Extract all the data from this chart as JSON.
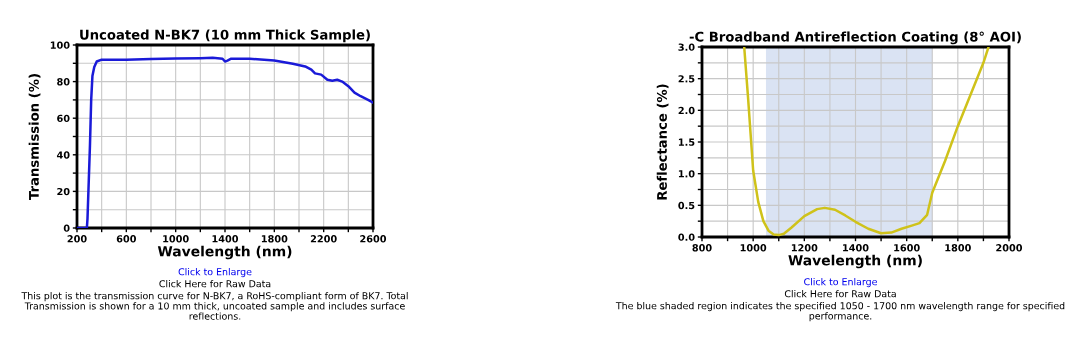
{
  "chart_data": [
    {
      "type": "line",
      "title": "Uncoated N-BK7 (10 mm Thick Sample)",
      "xlabel": "Wavelength (nm)",
      "ylabel": "Transmission (%)",
      "x": [
        200,
        280,
        285,
        295,
        305,
        315,
        325,
        340,
        360,
        400,
        600,
        800,
        1000,
        1200,
        1300,
        1380,
        1400,
        1420,
        1450,
        1600,
        1800,
        1950,
        2050,
        2100,
        2130,
        2180,
        2230,
        2270,
        2310,
        2350,
        2400,
        2450,
        2500,
        2560,
        2600
      ],
      "series": [
        {
          "color": "#1a1ad8",
          "values": [
            0,
            0,
            5,
            25,
            45,
            70,
            83,
            88,
            91,
            92,
            92,
            92.3,
            92.6,
            92.8,
            93,
            92.5,
            91,
            91.5,
            92.5,
            92.5,
            91.5,
            89.8,
            88.3,
            86.5,
            84.5,
            83.8,
            81,
            80.5,
            81,
            80,
            77.5,
            74,
            72,
            70,
            68.5
          ]
        }
      ],
      "xlim": [
        200,
        2600
      ],
      "ylim": [
        0,
        100
      ],
      "xticks": [
        200,
        {
          "value": 400,
          "label": null
        },
        600,
        {
          "value": 800,
          "label": null
        },
        1000,
        {
          "value": 1200,
          "label": null
        },
        1400,
        {
          "value": 1600,
          "label": null
        },
        1800,
        {
          "value": 2000,
          "label": null
        },
        2200,
        {
          "value": 2400,
          "label": null
        },
        2600
      ],
      "yticks": [
        0,
        {
          "value": 10,
          "label": null
        },
        20,
        {
          "value": 30,
          "label": null
        },
        40,
        {
          "value": 50,
          "label": null
        },
        60,
        {
          "value": 70,
          "label": null
        },
        80,
        {
          "value": 90,
          "label": null
        },
        100
      ],
      "grid": true,
      "marker": "none",
      "line_style": "solid",
      "annotations": [
        "Click to Enlarge",
        "Click Here for Raw Data",
        "This plot is the transmission curve for N-BK7, a RoHS-compliant form of BK7. Total Transmission is shown for a 10 mm thick, uncoated sample and includes surface reflections."
      ]
    },
    {
      "type": "line",
      "title": "-C Broadband Antireflection Coating (8° AOI)",
      "xlabel": "Wavelength (nm)",
      "ylabel": "Reflectance (%)",
      "x": [
        965,
        980,
        1000,
        1020,
        1040,
        1060,
        1080,
        1100,
        1120,
        1150,
        1200,
        1250,
        1280,
        1320,
        1360,
        1400,
        1450,
        1500,
        1540,
        1580,
        1620,
        1650,
        1680,
        1700,
        1750,
        1800,
        1850,
        1900,
        1920
      ],
      "series": [
        {
          "color": "#cfc21a",
          "values": [
            3.0,
            2.2,
            1.05,
            0.55,
            0.25,
            0.1,
            0.04,
            0.03,
            0.05,
            0.15,
            0.33,
            0.44,
            0.46,
            0.43,
            0.34,
            0.24,
            0.13,
            0.06,
            0.07,
            0.13,
            0.18,
            0.22,
            0.35,
            0.7,
            1.2,
            1.75,
            2.25,
            2.75,
            3.0
          ]
        }
      ],
      "xlim": [
        800,
        2000
      ],
      "ylim": [
        0,
        3
      ],
      "xticks": [
        800,
        {
          "value": 900,
          "label": null
        },
        1000,
        {
          "value": 1100,
          "label": null
        },
        1200,
        {
          "value": 1300,
          "label": null
        },
        1400,
        {
          "value": 1500,
          "label": null
        },
        1600,
        {
          "value": 1700,
          "label": null
        },
        1800,
        {
          "value": 1900,
          "label": null
        },
        2000
      ],
      "yticks": [
        {
          "value": 0,
          "label": "0.0"
        },
        {
          "value": 0.25,
          "label": null
        },
        {
          "value": 0.5,
          "label": "0.5"
        },
        {
          "value": 0.75,
          "label": null
        },
        {
          "value": 1,
          "label": "1.0"
        },
        {
          "value": 1.25,
          "label": null
        },
        {
          "value": 1.5,
          "label": "1.5"
        },
        {
          "value": 1.75,
          "label": null
        },
        {
          "value": 2,
          "label": "2.0"
        },
        {
          "value": 2.25,
          "label": null
        },
        {
          "value": 2.5,
          "label": "2.5"
        },
        {
          "value": 2.75,
          "label": null
        },
        {
          "value": 3,
          "label": "3.0"
        }
      ],
      "bands": [
        {
          "axis": "x",
          "from": 1050,
          "to": 1700,
          "color": "#dae3f3"
        }
      ],
      "grid": true,
      "marker": "none",
      "line_style": "solid",
      "annotations": [
        "Click to Enlarge",
        "Click Here for Raw Data",
        "The blue shaded region indicates the specified 1050 - 1700 nm wavelength range for specified performance."
      ]
    }
  ]
}
